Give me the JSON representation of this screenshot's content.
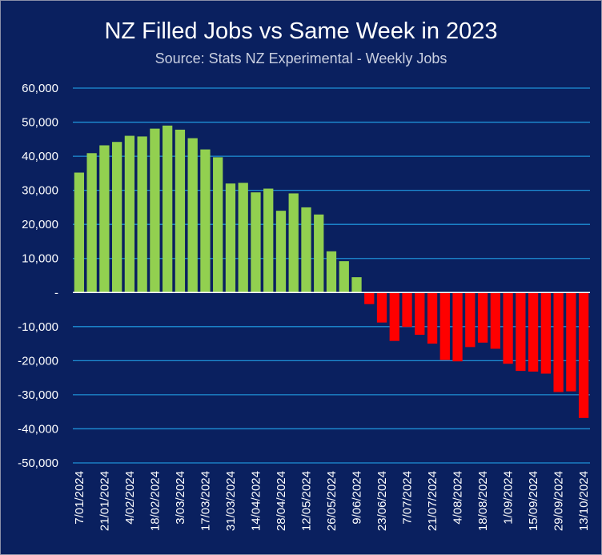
{
  "chart_data": {
    "type": "bar",
    "title": "NZ Filled Jobs vs Same Week in 2023",
    "subtitle": "Source: Stats NZ Experimental - Weekly Jobs",
    "ylim": [
      -50000,
      60000
    ],
    "y_ticks": [
      60000,
      50000,
      40000,
      30000,
      20000,
      10000,
      0,
      -10000,
      -20000,
      -30000,
      -40000,
      -50000
    ],
    "y_tick_labels": [
      "60,000",
      "50,000",
      "40,000",
      "30,000",
      "20,000",
      "10,000",
      "-",
      "-10,000",
      "-20,000",
      "-30,000",
      "-40,000",
      "-50,000"
    ],
    "grid": true,
    "x_labels": [
      "7/01/2024",
      "21/01/2024",
      "4/02/2024",
      "18/02/2024",
      "3/03/2024",
      "17/03/2024",
      "31/03/2024",
      "14/04/2024",
      "28/04/2024",
      "12/05/2024",
      "26/05/2024",
      "9/06/2024",
      "23/06/2024",
      "7/07/2024",
      "21/07/2024",
      "4/08/2024",
      "18/08/2024",
      "1/09/2024",
      "15/09/2024",
      "29/09/2024",
      "13/10/2024"
    ],
    "values": [
      35200,
      40900,
      43200,
      44200,
      46000,
      45800,
      48100,
      49000,
      47800,
      45300,
      42000,
      39700,
      32000,
      32200,
      29400,
      30500,
      24000,
      29100,
      25000,
      22900,
      12100,
      9200,
      4500,
      -3400,
      -8800,
      -14200,
      -10100,
      -12400,
      -15000,
      -19800,
      -20200,
      -16000,
      -14700,
      -16500,
      -20900,
      -23000,
      -23200,
      -23800,
      -29200,
      -29000,
      -36800
    ],
    "positive_color": "#92d050",
    "negative_color": "#ff0000"
  }
}
